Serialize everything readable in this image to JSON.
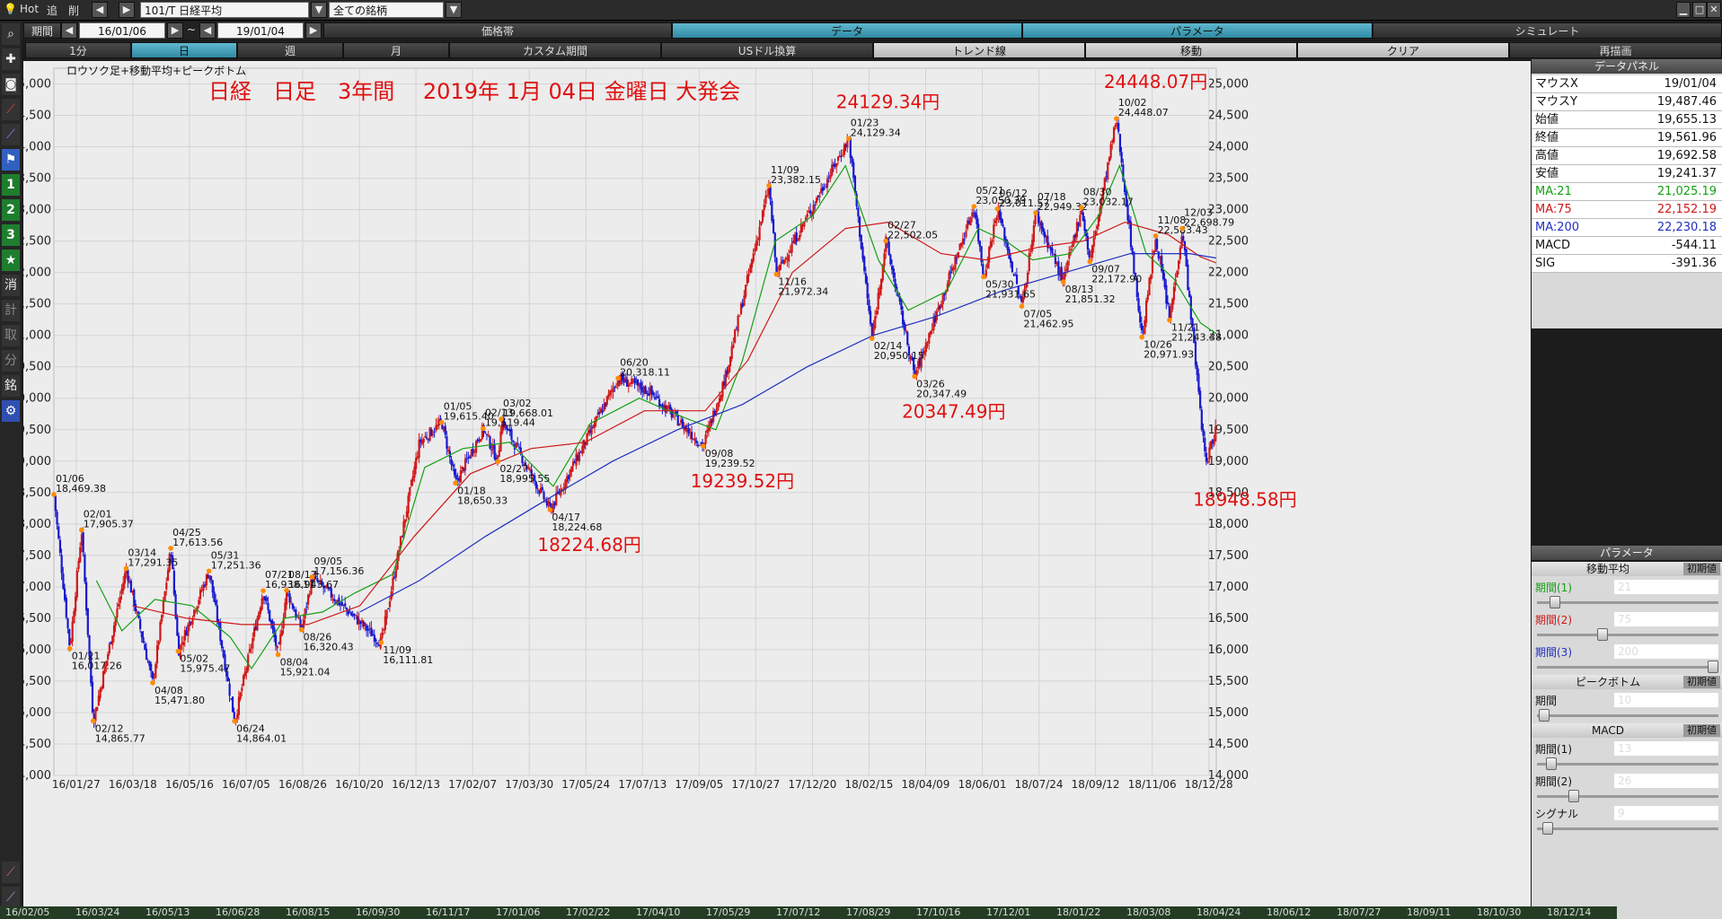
{
  "topbar": {
    "hot": "Hot",
    "tsui": "追",
    "sakujo": "削",
    "symbol": "101/T 日経平均",
    "universe": "全ての銘柄"
  },
  "bar2": {
    "period_label": "期間",
    "date_from": "16/01/06",
    "tilde": "~",
    "date_to": "19/01/04",
    "tabs": [
      "価格帯",
      "データ",
      "パラメータ",
      "シミュレート"
    ],
    "active_tabs": [
      1,
      2
    ]
  },
  "bar3": {
    "buttons": [
      "1分",
      "日",
      "週",
      "月",
      "カスタム期間",
      "USドル換算",
      "トレンド線",
      "移動",
      "クリア",
      "再描画"
    ]
  },
  "left_tools": [
    "1",
    "2",
    "3",
    "★",
    "消",
    "計",
    "取",
    "分",
    "銘"
  ],
  "chart_title_small": "ロウソク足+移動平均+ピークボトム",
  "headline": "日経　日足　3年間　 2019年 1月 04日 金曜日 大発会",
  "chart_data": {
    "type": "candlestick",
    "ylim": [
      14000,
      25250
    ],
    "yticks": [
      14000,
      14500,
      15000,
      15500,
      16000,
      16500,
      17000,
      17500,
      18000,
      18500,
      19000,
      19500,
      20000,
      20500,
      21000,
      21500,
      22000,
      22500,
      23000,
      23500,
      24000,
      24500,
      25000
    ],
    "ytick_labels": [
      "14,000",
      "14,500",
      "15,000",
      "15,500",
      "16,000",
      "16,500",
      "17,000",
      "17,500",
      "18,000",
      "18,500",
      "19,000",
      "19,500",
      "20,000",
      "20,500",
      "21,000",
      "21,500",
      "22,000",
      "22,500",
      "23,000",
      "23,500",
      "24,000",
      "24,500",
      "25,000"
    ],
    "xlim": [
      "2016-01-06",
      "2019-01-04"
    ],
    "xticks": [
      "16/01/27",
      "16/03/18",
      "16/05/16",
      "16/07/05",
      "16/08/26",
      "16/10/20",
      "16/12/13",
      "17/02/07",
      "17/03/30",
      "17/05/24",
      "17/07/13",
      "17/09/05",
      "17/10/27",
      "17/12/20",
      "18/02/15",
      "18/04/09",
      "18/06/01",
      "18/07/24",
      "18/09/12",
      "18/11/06",
      "18/12/28"
    ],
    "close_path": [
      [
        "2016-01-06",
        18450
      ],
      [
        "2016-01-21",
        16017
      ],
      [
        "2016-02-01",
        17905
      ],
      [
        "2016-02-12",
        14865
      ],
      [
        "2016-03-14",
        17291
      ],
      [
        "2016-04-08",
        15471
      ],
      [
        "2016-04-25",
        17613
      ],
      [
        "2016-05-02",
        15975
      ],
      [
        "2016-05-31",
        17251
      ],
      [
        "2016-06-24",
        14864
      ],
      [
        "2016-07-21",
        16938
      ],
      [
        "2016-08-04",
        15921
      ],
      [
        "2016-08-12",
        16943
      ],
      [
        "2016-08-26",
        16320
      ],
      [
        "2016-09-05",
        17156
      ],
      [
        "2016-11-09",
        16111
      ],
      [
        "2016-12-15",
        19300
      ],
      [
        "2017-01-05",
        19615
      ],
      [
        "2017-01-18",
        18650
      ],
      [
        "2017-02-13",
        19519
      ],
      [
        "2017-02-27",
        18995
      ],
      [
        "2017-03-02",
        19668
      ],
      [
        "2017-04-17",
        18224
      ],
      [
        "2017-06-20",
        20318
      ],
      [
        "2017-07-20",
        20100
      ],
      [
        "2017-09-08",
        19239
      ],
      [
        "2017-09-29",
        20350
      ],
      [
        "2017-11-09",
        23382
      ],
      [
        "2017-11-16",
        21972
      ],
      [
        "2018-01-23",
        24129
      ],
      [
        "2018-02-14",
        20950
      ],
      [
        "2018-02-27",
        22502
      ],
      [
        "2018-03-26",
        20347
      ],
      [
        "2018-05-21",
        23050
      ],
      [
        "2018-05-30",
        21931
      ],
      [
        "2018-06-12",
        23011
      ],
      [
        "2018-07-05",
        21462
      ],
      [
        "2018-07-18",
        22949
      ],
      [
        "2018-08-13",
        21851
      ],
      [
        "2018-08-30",
        23032
      ],
      [
        "2018-09-07",
        22172
      ],
      [
        "2018-10-02",
        24448
      ],
      [
        "2018-10-26",
        20971
      ],
      [
        "2018-11-08",
        22583
      ],
      [
        "2018-11-21",
        21243
      ],
      [
        "2018-12-03",
        22698
      ],
      [
        "2018-12-25",
        18948
      ],
      [
        "2019-01-04",
        19561
      ]
    ],
    "ma_series": [
      {
        "name": "MA:21",
        "color": "#16a016",
        "points": [
          [
            "2016-02-15",
            17100
          ],
          [
            "2016-03-10",
            16300
          ],
          [
            "2016-04-10",
            16800
          ],
          [
            "2016-05-15",
            16700
          ],
          [
            "2016-06-20",
            16200
          ],
          [
            "2016-07-10",
            15700
          ],
          [
            "2016-08-10",
            16500
          ],
          [
            "2016-09-15",
            16600
          ],
          [
            "2016-10-15",
            16900
          ],
          [
            "2016-11-20",
            17200
          ],
          [
            "2016-12-20",
            18900
          ],
          [
            "2017-01-25",
            19200
          ],
          [
            "2017-03-10",
            19300
          ],
          [
            "2017-04-20",
            18600
          ],
          [
            "2017-05-25",
            19600
          ],
          [
            "2017-07-10",
            20000
          ],
          [
            "2017-08-20",
            19700
          ],
          [
            "2017-09-20",
            19500
          ],
          [
            "2017-10-15",
            20600
          ],
          [
            "2017-11-15",
            22500
          ],
          [
            "2017-12-20",
            22900
          ],
          [
            "2018-01-20",
            23700
          ],
          [
            "2018-02-20",
            22200
          ],
          [
            "2018-03-20",
            21400
          ],
          [
            "2018-04-25",
            21700
          ],
          [
            "2018-05-25",
            22700
          ],
          [
            "2018-06-20",
            22500
          ],
          [
            "2018-07-15",
            22200
          ],
          [
            "2018-08-20",
            22300
          ],
          [
            "2018-09-15",
            22900
          ],
          [
            "2018-10-05",
            23700
          ],
          [
            "2018-10-30",
            22300
          ],
          [
            "2018-11-25",
            21900
          ],
          [
            "2018-12-20",
            21200
          ],
          [
            "2019-01-04",
            21025
          ]
        ]
      },
      {
        "name": "MA:75",
        "color": "#d01818",
        "points": [
          [
            "2016-03-20",
            16700
          ],
          [
            "2016-05-10",
            16500
          ],
          [
            "2016-07-01",
            16400
          ],
          [
            "2016-09-01",
            16400
          ],
          [
            "2016-10-20",
            16700
          ],
          [
            "2016-12-10",
            17800
          ],
          [
            "2017-02-01",
            18800
          ],
          [
            "2017-03-30",
            19200
          ],
          [
            "2017-05-20",
            19300
          ],
          [
            "2017-07-15",
            19800
          ],
          [
            "2017-09-10",
            19800
          ],
          [
            "2017-10-20",
            20600
          ],
          [
            "2017-12-01",
            22000
          ],
          [
            "2018-01-20",
            22700
          ],
          [
            "2018-03-01",
            22800
          ],
          [
            "2018-04-20",
            22300
          ],
          [
            "2018-06-01",
            22200
          ],
          [
            "2018-07-20",
            22400
          ],
          [
            "2018-09-01",
            22500
          ],
          [
            "2018-10-10",
            22800
          ],
          [
            "2018-11-20",
            22600
          ],
          [
            "2018-12-20",
            22250
          ],
          [
            "2019-01-04",
            22152
          ]
        ]
      },
      {
        "name": "MA:200",
        "color": "#2030c0",
        "points": [
          [
            "2016-10-20",
            16600
          ],
          [
            "2016-12-15",
            17100
          ],
          [
            "2017-02-15",
            17800
          ],
          [
            "2017-04-15",
            18400
          ],
          [
            "2017-06-15",
            19000
          ],
          [
            "2017-08-15",
            19500
          ],
          [
            "2017-10-15",
            19900
          ],
          [
            "2017-12-15",
            20500
          ],
          [
            "2018-02-15",
            21000
          ],
          [
            "2018-04-15",
            21300
          ],
          [
            "2018-06-15",
            21700
          ],
          [
            "2018-08-15",
            22000
          ],
          [
            "2018-10-15",
            22300
          ],
          [
            "2018-12-10",
            22300
          ],
          [
            "2019-01-04",
            22230
          ]
        ]
      }
    ],
    "peak_labels": [
      {
        "date": "2016-01-06",
        "value": 18469.38,
        "d": "01/06",
        "v": "18,469.38",
        "pos": "above"
      },
      {
        "date": "2016-01-21",
        "value": 16017.26,
        "d": "01/21",
        "v": "16,017.26",
        "pos": "below"
      },
      {
        "date": "2016-02-01",
        "value": 17905.37,
        "d": "02/01",
        "v": "17,905.37",
        "pos": "above"
      },
      {
        "date": "2016-02-12",
        "value": 14865.77,
        "d": "02/12",
        "v": "14,865.77",
        "pos": "below"
      },
      {
        "date": "2016-03-14",
        "value": 17291.35,
        "d": "03/14",
        "v": "17,291.35",
        "pos": "above"
      },
      {
        "date": "2016-04-08",
        "value": 15471.8,
        "d": "04/08",
        "v": "15,471.80",
        "pos": "below"
      },
      {
        "date": "2016-04-25",
        "value": 17613.56,
        "d": "04/25",
        "v": "17,613.56",
        "pos": "above"
      },
      {
        "date": "2016-05-02",
        "value": 15975.47,
        "d": "05/02",
        "v": "15,975.47",
        "pos": "below"
      },
      {
        "date": "2016-05-31",
        "value": 17251.36,
        "d": "05/31",
        "v": "17,251.36",
        "pos": "above"
      },
      {
        "date": "2016-06-24",
        "value": 14864.01,
        "d": "06/24",
        "v": "14,864.01",
        "pos": "below"
      },
      {
        "date": "2016-07-21",
        "value": 16938.11,
        "d": "07/21",
        "v": "16,938.11",
        "pos": "above"
      },
      {
        "date": "2016-08-04",
        "value": 15921.04,
        "d": "08/04",
        "v": "15,921.04",
        "pos": "below"
      },
      {
        "date": "2016-08-12",
        "value": 16943.67,
        "d": "08/12",
        "v": "16,943.67",
        "pos": "above"
      },
      {
        "date": "2016-08-26",
        "value": 16320.43,
        "d": "08/26",
        "v": "16,320.43",
        "pos": "below"
      },
      {
        "date": "2016-09-05",
        "value": 17156.36,
        "d": "09/05",
        "v": "17,156.36",
        "pos": "above"
      },
      {
        "date": "2016-11-09",
        "value": 16111.81,
        "d": "11/09",
        "v": "16,111.81",
        "pos": "below"
      },
      {
        "date": "2017-01-05",
        "value": 19615.4,
        "d": "01/05",
        "v": "19,615.40",
        "pos": "above"
      },
      {
        "date": "2017-01-18",
        "value": 18650.33,
        "d": "01/18",
        "v": "18,650.33",
        "pos": "below"
      },
      {
        "date": "2017-02-13",
        "value": 19519.44,
        "d": "02/13",
        "v": "19,519.44",
        "pos": "above"
      },
      {
        "date": "2017-02-27",
        "value": 18995.55,
        "d": "02/27",
        "v": "18,995.55",
        "pos": "below"
      },
      {
        "date": "2017-03-02",
        "value": 19668.01,
        "d": "03/02",
        "v": "19,668.01",
        "pos": "above"
      },
      {
        "date": "2017-04-17",
        "value": 18224.68,
        "d": "04/17",
        "v": "18,224.68",
        "pos": "below"
      },
      {
        "date": "2017-06-20",
        "value": 20318.11,
        "d": "06/20",
        "v": "20,318.11",
        "pos": "above"
      },
      {
        "date": "2017-09-08",
        "value": 19239.52,
        "d": "09/08",
        "v": "19,239.52",
        "pos": "below"
      },
      {
        "date": "2017-11-09",
        "value": 23382.15,
        "d": "11/09",
        "v": "23,382.15",
        "pos": "above"
      },
      {
        "date": "2017-11-16",
        "value": 21972.34,
        "d": "11/16",
        "v": "21,972.34",
        "pos": "below"
      },
      {
        "date": "2018-01-23",
        "value": 24129.34,
        "d": "01/23",
        "v": "24,129.34",
        "pos": "above"
      },
      {
        "date": "2018-02-14",
        "value": 20950.15,
        "d": "02/14",
        "v": "20,950.15",
        "pos": "below"
      },
      {
        "date": "2018-02-27",
        "value": 22502.05,
        "d": "02/27",
        "v": "22,502.05",
        "pos": "above"
      },
      {
        "date": "2018-03-26",
        "value": 20347.49,
        "d": "03/26",
        "v": "20,347.49",
        "pos": "below"
      },
      {
        "date": "2018-05-21",
        "value": 23050.39,
        "d": "05/21",
        "v": "23,050.39",
        "pos": "above"
      },
      {
        "date": "2018-05-30",
        "value": 21931.65,
        "d": "05/30",
        "v": "21,931.65",
        "pos": "below"
      },
      {
        "date": "2018-06-12",
        "value": 23011.57,
        "d": "06/12",
        "v": "23,011.57",
        "pos": "above"
      },
      {
        "date": "2018-07-05",
        "value": 21462.95,
        "d": "07/05",
        "v": "21,462.95",
        "pos": "below"
      },
      {
        "date": "2018-07-18",
        "value": 22949.32,
        "d": "07/18",
        "v": "22,949.32",
        "pos": "above"
      },
      {
        "date": "2018-08-13",
        "value": 21851.32,
        "d": "08/13",
        "v": "21,851.32",
        "pos": "below"
      },
      {
        "date": "2018-08-30",
        "value": 23032.17,
        "d": "08/30",
        "v": "23,032.17",
        "pos": "above"
      },
      {
        "date": "2018-09-07",
        "value": 22172.9,
        "d": "09/07",
        "v": "22,172.90",
        "pos": "below"
      },
      {
        "date": "2018-10-02",
        "value": 24448.07,
        "d": "10/02",
        "v": "24,448.07",
        "pos": "above"
      },
      {
        "date": "2018-10-26",
        "value": 20971.93,
        "d": "10/26",
        "v": "20,971.93",
        "pos": "below"
      },
      {
        "date": "2018-11-08",
        "value": 22583.43,
        "d": "11/08",
        "v": "22,583.43",
        "pos": "above"
      },
      {
        "date": "2018-11-21",
        "value": 21243.38,
        "d": "11/21",
        "v": "21,243.38",
        "pos": "below"
      },
      {
        "date": "2018-12-03",
        "value": 22698.79,
        "d": "12/03",
        "v": "22,698.79",
        "pos": "above"
      }
    ],
    "big_annotations": [
      {
        "date": "2017-04-17",
        "value": 18224.68,
        "text": "18224.68円",
        "pos": "below"
      },
      {
        "date": "2017-09-08",
        "value": 19239.52,
        "text": "19239.52円",
        "pos": "below"
      },
      {
        "date": "2018-01-23",
        "value": 24129.34,
        "text": "24129.34円",
        "pos": "above"
      },
      {
        "date": "2018-03-26",
        "value": 20347.49,
        "text": "20347.49円",
        "pos": "below"
      },
      {
        "date": "2018-10-02",
        "value": 24448.07,
        "text": "24448.07円",
        "pos": "above"
      },
      {
        "date": "2018-12-25",
        "value": 18948.58,
        "text": "18948.58円",
        "pos": "below"
      }
    ]
  },
  "data_panel": {
    "title": "データパネル",
    "rows": [
      {
        "k": "マウスX",
        "v": "19/01/04",
        "color": "#111"
      },
      {
        "k": "マウスY",
        "v": "19,487.46",
        "color": "#111"
      },
      {
        "k": "始値",
        "v": "19,655.13",
        "color": "#111"
      },
      {
        "k": "終値",
        "v": "19,561.96",
        "color": "#111"
      },
      {
        "k": "高値",
        "v": "19,692.58",
        "color": "#111"
      },
      {
        "k": "安値",
        "v": "19,241.37",
        "color": "#111"
      },
      {
        "k": "MA:21",
        "v": "21,025.19",
        "color": "#14a014"
      },
      {
        "k": "MA:75",
        "v": "22,152.19",
        "color": "#d01818"
      },
      {
        "k": "MA:200",
        "v": "22,230.18",
        "color": "#2030c0"
      },
      {
        "k": "MACD",
        "v": "-544.11",
        "color": "#111"
      },
      {
        "k": "SIG",
        "v": "-391.36",
        "color": "#111"
      }
    ]
  },
  "param_panel": {
    "title": "パラメータ",
    "init_label": "初期値",
    "groups": [
      {
        "title": "移動平均",
        "params": [
          {
            "label": "期間(1)",
            "value": "21",
            "color": "#14a014",
            "pos": 0.1
          },
          {
            "label": "期間(2)",
            "value": "75",
            "color": "#d01818",
            "pos": 0.37
          },
          {
            "label": "期間(3)",
            "value": "200",
            "color": "#2030c0",
            "pos": 1.0
          }
        ]
      },
      {
        "title": "ピークボトム",
        "params": [
          {
            "label": "期間",
            "value": "10",
            "color": "#111",
            "pos": 0.04
          }
        ]
      },
      {
        "title": "MACD",
        "params": [
          {
            "label": "期間(1)",
            "value": "13",
            "color": "#111",
            "pos": 0.08
          },
          {
            "label": "期間(2)",
            "value": "26",
            "color": "#111",
            "pos": 0.21
          },
          {
            "label": "シグナル",
            "value": "9",
            "color": "#111",
            "pos": 0.06
          }
        ]
      }
    ]
  },
  "date_bar": [
    "16/02/05",
    "16/03/24",
    "16/05/13",
    "16/06/28",
    "16/08/15",
    "16/09/30",
    "16/11/17",
    "17/01/06",
    "17/02/22",
    "17/04/10",
    "17/05/29",
    "17/07/12",
    "17/08/29",
    "17/10/16",
    "17/12/01",
    "18/01/22",
    "18/03/08",
    "18/04/24",
    "18/06/12",
    "18/07/27",
    "18/09/11",
    "18/10/30",
    "18/12/14"
  ]
}
